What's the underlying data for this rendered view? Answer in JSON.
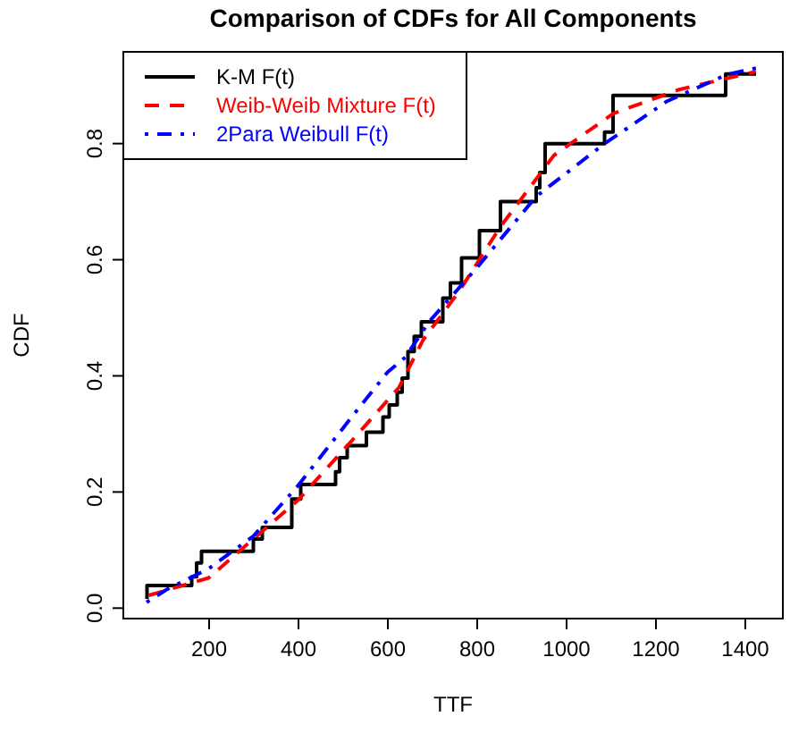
{
  "chart_data": {
    "type": "line",
    "title": "Comparison of CDFs for All Components",
    "xlabel": "TTF",
    "ylabel": "CDF",
    "xlim": [
      8,
      1484
    ],
    "ylim": [
      -0.018,
      0.958
    ],
    "xticks": [
      200,
      400,
      600,
      800,
      1000,
      1200,
      1400
    ],
    "yticks": [
      {
        "value": 0,
        "label": "0.0"
      },
      {
        "value": 0.2,
        "label": "0.2"
      },
      {
        "value": 0.4,
        "label": "0.4"
      },
      {
        "value": 0.6,
        "label": "0.6"
      },
      {
        "value": 0.8,
        "label": "0.8"
      }
    ],
    "grid": false,
    "legend": "top left",
    "marker": "none",
    "series": [
      {
        "name": "K-M F(t)",
        "type": "step",
        "color": "#000000",
        "line_style": "solid",
        "x": [
          61,
          61,
          161,
          172,
          183,
          299,
          319,
          385,
          385,
          405,
          483,
          492,
          509,
          552,
          589,
          603,
          621,
          632,
          645,
          659,
          675,
          723,
          740,
          765,
          805,
          852,
          932,
          940,
          952,
          1085,
          1104,
          1356,
          1424
        ],
        "values": [
          0.016,
          0.039,
          0.054,
          0.078,
          0.098,
          0.119,
          0.139,
          0.16,
          0.188,
          0.213,
          0.235,
          0.259,
          0.28,
          0.303,
          0.329,
          0.35,
          0.372,
          0.396,
          0.442,
          0.468,
          0.493,
          0.534,
          0.56,
          0.603,
          0.65,
          0.7,
          0.724,
          0.75,
          0.8,
          0.82,
          0.883,
          0.92,
          0.92
        ]
      },
      {
        "name": "Weib-Weib Mixture F(t)",
        "color": "#ff0000",
        "line_style": "dashed",
        "x": [
          65,
          199,
          299,
          399,
          519,
          625,
          679,
          759,
          852,
          972,
          1105,
          1252,
          1424
        ],
        "values": [
          0.022,
          0.052,
          0.119,
          0.186,
          0.288,
          0.38,
          0.462,
          0.545,
          0.657,
          0.78,
          0.852,
          0.893,
          0.924
        ]
      },
      {
        "name": "2Para Weibull F(t)",
        "color": "#0000ff",
        "line_style": "dashdot",
        "x": [
          60,
          105,
          199,
          299,
          399,
          519,
          599,
          639,
          692,
          799,
          932,
          1085,
          1225,
          1359,
          1424
        ],
        "values": [
          0.01,
          0.032,
          0.068,
          0.124,
          0.211,
          0.329,
          0.406,
          0.432,
          0.493,
          0.586,
          0.709,
          0.8,
          0.873,
          0.919,
          0.93
        ]
      }
    ]
  }
}
